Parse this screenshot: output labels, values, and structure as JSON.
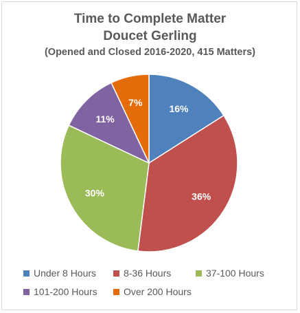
{
  "chart_data": {
    "type": "pie",
    "title": "Time to Complete Matter",
    "subtitle": "Doucet Gerling",
    "subtitle2": "(Opened and Closed 2016-2020, 415 Matters)",
    "slices": [
      {
        "name": "Under 8 Hours",
        "value": 16,
        "label": "16%",
        "color": "#4f81bd"
      },
      {
        "name": "8-36 Hours",
        "value": 36,
        "label": "36%",
        "color": "#c0504d"
      },
      {
        "name": "37-100 Hours",
        "value": 30,
        "label": "30%",
        "color": "#9bbb59"
      },
      {
        "name": "101-200 Hours",
        "value": 11,
        "label": "11%",
        "color": "#8064a2"
      },
      {
        "name": "Over 200 Hours",
        "value": 7,
        "label": "7%",
        "color": "#e46c0a"
      }
    ],
    "legend_position": "bottom"
  }
}
